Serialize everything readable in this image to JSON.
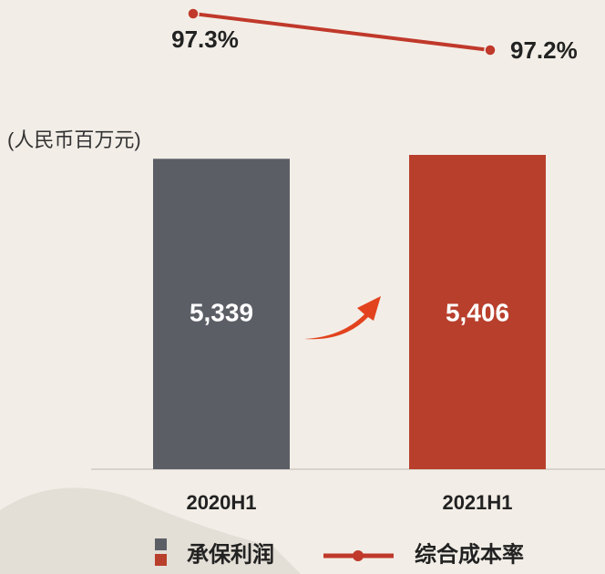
{
  "chart_data": {
    "type": "bar",
    "unit_label": "(人民币百万元)",
    "categories": [
      "2020H1",
      "2021H1"
    ],
    "series": [
      {
        "name": "承保利润",
        "type": "bar",
        "colors": [
          "#5c5e66",
          "#b83f2c"
        ],
        "values": [
          5339,
          5406
        ],
        "value_labels": [
          "5,339",
          "5,406"
        ]
      },
      {
        "name": "综合成本率",
        "type": "line",
        "color": "#c0392b",
        "values": [
          97.3,
          97.2
        ],
        "value_labels": [
          "97.3%",
          "97.2%"
        ]
      }
    ]
  }
}
